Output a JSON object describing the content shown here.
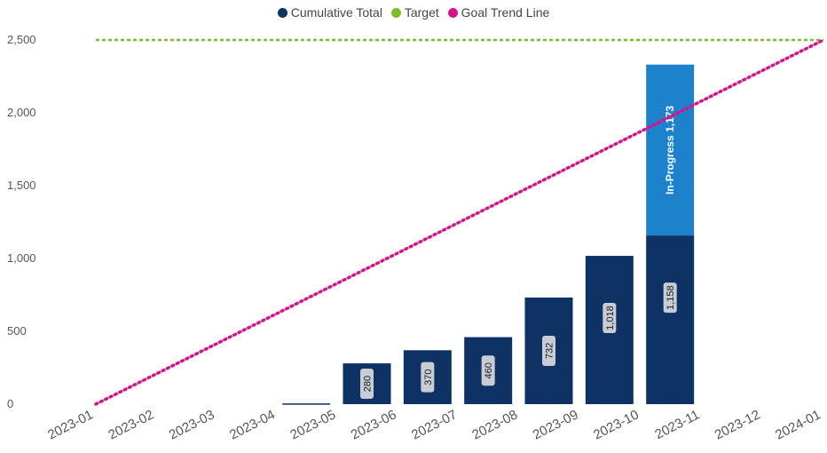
{
  "chart_data": {
    "type": "bar",
    "legend": [
      {
        "name": "Cumulative Total",
        "color": "#0d3263"
      },
      {
        "name": "Target",
        "color": "#7cbd2b"
      },
      {
        "name": "Goal Trend Line",
        "color": "#d9128a"
      }
    ],
    "legend_position": "top-center",
    "x_ticks": [
      "2023-01",
      "2023-02",
      "2023-03",
      "2023-04",
      "2023-05",
      "2023-06",
      "2023-07",
      "2023-08",
      "2023-09",
      "2023-10",
      "2023-11",
      "2023-12",
      "2024-01"
    ],
    "y_ticks": [
      "0",
      "500",
      "1,000",
      "1,500",
      "2,000",
      "2,500"
    ],
    "ylim": [
      0,
      2500
    ],
    "categories": [
      "2023-04",
      "2023-05",
      "2023-06",
      "2023-07",
      "2023-08",
      "2023-09",
      "2023-10"
    ],
    "series": [
      {
        "name": "Cumulative Total",
        "values": [
          5,
          280,
          370,
          460,
          732,
          1018,
          1158
        ],
        "labels": [
          "",
          "280",
          "370",
          "460",
          "732",
          "1,018",
          "1,158"
        ],
        "color": "#0d3263"
      },
      {
        "name": "In-Progress",
        "values": [
          0,
          0,
          0,
          0,
          0,
          0,
          1173
        ],
        "labels": [
          "",
          "",
          "",
          "",
          "",
          "",
          "In-Progress  1,173"
        ],
        "color": "#1c82cc"
      }
    ],
    "target": {
      "value": 2500,
      "color": "#7cbd2b"
    },
    "goal_trend": {
      "from": [
        "2023-01",
        0
      ],
      "to": [
        "2024-01",
        2500
      ],
      "color": "#d9128a"
    },
    "grid": false
  }
}
